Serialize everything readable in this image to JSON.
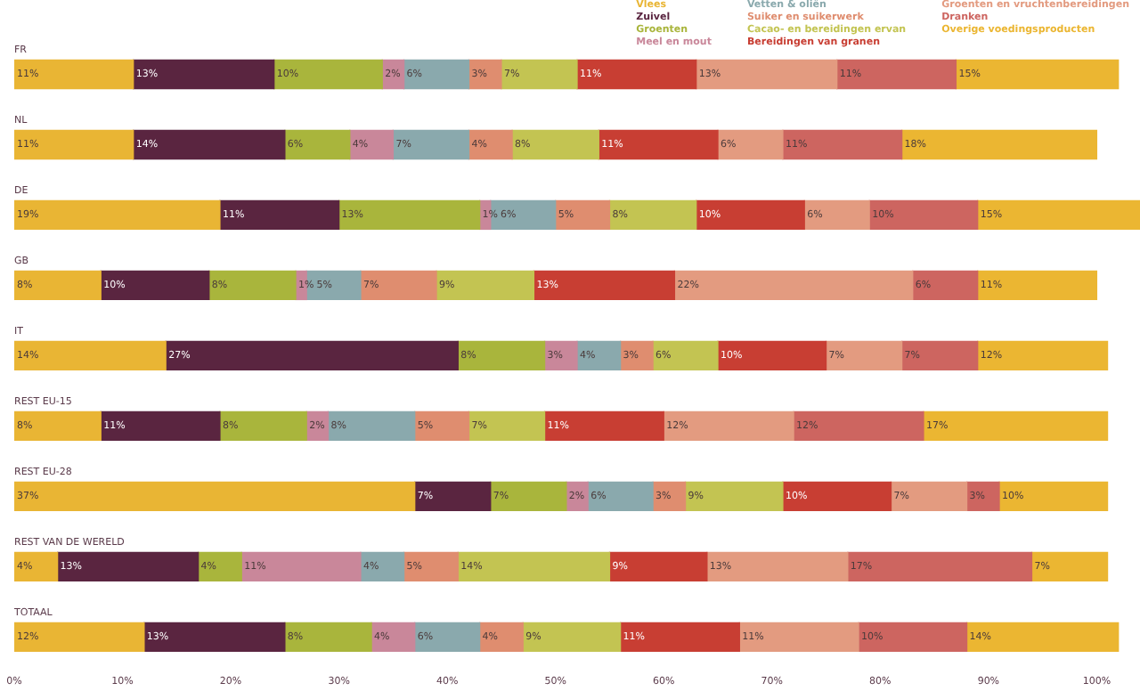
{
  "chart_data": {
    "type": "bar",
    "orientation": "horizontal",
    "stacked": true,
    "legend": "top right",
    "grid": false,
    "categories": [
      "FR",
      "NL",
      "DE",
      "GB",
      "IT",
      "REST EU-15",
      "REST EU-28",
      "REST VAN DE WERELD",
      "TOTAAL"
    ],
    "xlim": [
      0,
      104
    ],
    "xticks": [
      {
        "value": 0,
        "label": "0%"
      },
      {
        "value": 10,
        "label": "10%"
      },
      {
        "value": 20,
        "label": "20%"
      },
      {
        "value": 30,
        "label": "30%"
      },
      {
        "value": 40,
        "label": "40%"
      },
      {
        "value": 50,
        "label": "50%"
      },
      {
        "value": 60,
        "label": "60%"
      },
      {
        "value": 70,
        "label": "70%"
      },
      {
        "value": 80,
        "label": "80%"
      },
      {
        "value": 90,
        "label": "90%"
      },
      {
        "value": 100,
        "label": "100%"
      }
    ],
    "series": [
      {
        "name": "Vlees",
        "color": "#e9b534",
        "values": [
          11,
          11,
          19,
          8,
          14,
          8,
          37,
          4,
          12
        ],
        "value_labels": [
          "11%",
          "11%",
          "19%",
          "8%",
          "14%",
          "8%",
          "37%",
          "4%",
          "12%"
        ]
      },
      {
        "name": "Zuivel",
        "color": "#5a2540",
        "values": [
          13,
          14,
          11,
          10,
          27,
          11,
          7,
          13,
          13
        ],
        "value_labels": [
          "13%",
          "14%",
          "11%",
          "10%",
          "27%",
          "11%",
          "7%",
          "13%",
          "13%"
        ]
      },
      {
        "name": "Groenten",
        "color": "#a9b53c",
        "values": [
          10,
          6,
          13,
          8,
          8,
          8,
          7,
          4,
          8
        ],
        "value_labels": [
          "10%",
          "6%",
          "13%",
          "8%",
          "8%",
          "8%",
          "7%",
          "4%",
          "8%"
        ]
      },
      {
        "name": "Meel en mout",
        "color": "#c9879a",
        "values": [
          2,
          4,
          1,
          1,
          3,
          2,
          2,
          11,
          4
        ],
        "value_labels": [
          "2%",
          "4%",
          "1%",
          "1%",
          "3%",
          "2%",
          "2%",
          "11%",
          "4%"
        ]
      },
      {
        "name": "Vetten & oliën",
        "color": "#8aa9ad",
        "values": [
          6,
          7,
          6,
          5,
          4,
          8,
          6,
          4,
          6
        ],
        "value_labels": [
          "6%",
          "7%",
          "6%",
          "5%",
          "4%",
          "8%",
          "6%",
          "4%",
          "6%"
        ]
      },
      {
        "name": "Suiker en suikerwerk",
        "color": "#df8d6f",
        "values": [
          3,
          4,
          5,
          7,
          3,
          5,
          3,
          5,
          4
        ],
        "value_labels": [
          "3%",
          "4%",
          "5%",
          "7%",
          "3%",
          "5%",
          "3%",
          "5%",
          "4%"
        ]
      },
      {
        "name": "Cacao- en bereidingen ervan",
        "color": "#c3c452",
        "values": [
          7,
          8,
          8,
          9,
          6,
          7,
          9,
          14,
          9
        ],
        "value_labels": [
          "7%",
          "8%",
          "8%",
          "9%",
          "6%",
          "7%",
          "9%",
          "14%",
          "9%"
        ]
      },
      {
        "name": "Bereidingen van granen",
        "color": "#c83e33",
        "values": [
          11,
          11,
          10,
          13,
          10,
          11,
          10,
          9,
          11
        ],
        "value_labels": [
          "11%",
          "11%",
          "10%",
          "13%",
          "10%",
          "11%",
          "10%",
          "9%",
          "11%"
        ]
      },
      {
        "name": "Groenten en vruchtenbereidingen",
        "color": "#e39b80",
        "values": [
          13,
          6,
          6,
          22,
          7,
          12,
          7,
          13,
          11
        ],
        "value_labels": [
          "13%",
          "6%",
          "6%",
          "22%",
          "7%",
          "12%",
          "7%",
          "13%",
          "11%"
        ]
      },
      {
        "name": "Dranken",
        "color": "#cd6560",
        "values": [
          11,
          11,
          10,
          6,
          7,
          12,
          3,
          17,
          10
        ],
        "value_labels": [
          "11%",
          "11%",
          "10%",
          "6%",
          "7%",
          "12%",
          "3%",
          "17%",
          "10%"
        ]
      },
      {
        "name": "Overige voedingsproducten",
        "color": "#ebb632",
        "values": [
          15,
          18,
          15,
          11,
          12,
          17,
          10,
          7,
          14
        ],
        "value_labels": [
          "15%",
          "18%",
          "15%",
          "11%",
          "12%",
          "17%",
          "10%",
          "7%",
          "14%"
        ]
      }
    ]
  }
}
